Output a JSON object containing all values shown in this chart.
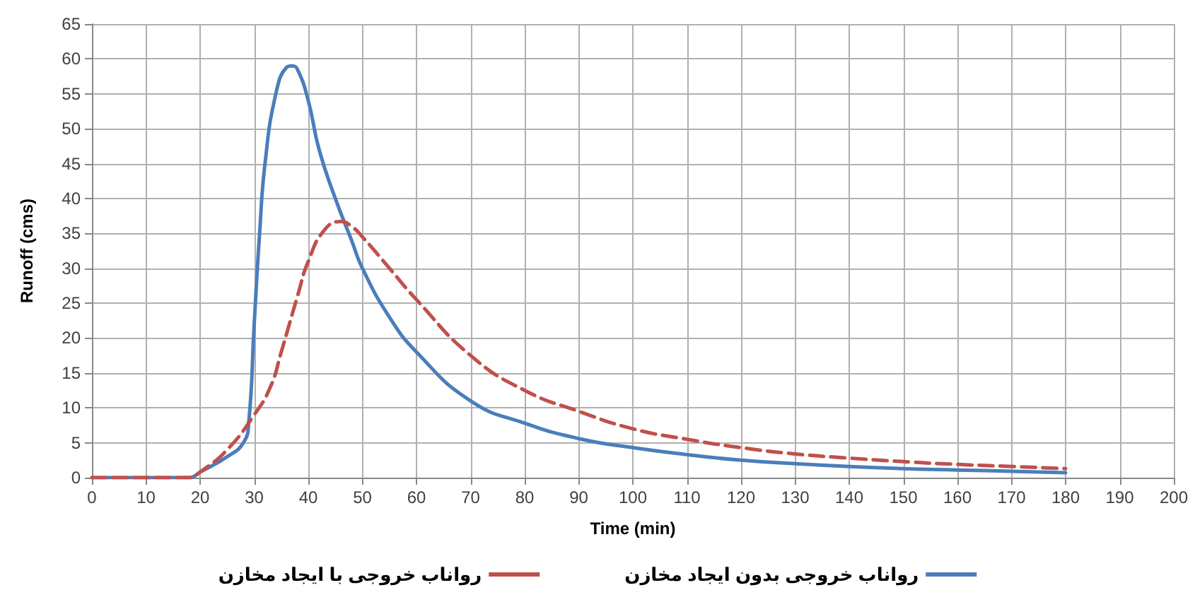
{
  "chart_data": {
    "type": "line",
    "xlabel": "Time (min)",
    "ylabel": "Runoff (cms)",
    "xlim": [
      0,
      200
    ],
    "xticks": [
      0,
      10,
      20,
      30,
      40,
      50,
      60,
      70,
      80,
      90,
      100,
      110,
      120,
      130,
      140,
      150,
      160,
      170,
      180,
      190,
      200
    ],
    "ylim": [
      0,
      65
    ],
    "yticks": [
      0,
      5,
      10,
      15,
      20,
      25,
      30,
      35,
      40,
      45,
      50,
      55,
      60,
      65
    ],
    "grid": true,
    "legend": "bottom",
    "marker": "none",
    "series": [
      {
        "name": "رواناب خروجی بدون ایجاد مخازن",
        "color": "#4a7ebb",
        "line_style": "solid",
        "x": [
          0,
          10,
          18,
          20,
          25,
          28,
          29,
          30,
          31,
          32,
          34,
          36,
          37,
          38,
          40,
          42,
          45,
          48,
          50,
          55,
          60,
          70,
          80,
          90,
          100,
          110,
          120,
          130,
          140,
          150,
          160,
          170,
          180
        ],
        "values": [
          0,
          0,
          0,
          0.8,
          3,
          5,
          8,
          22,
          35,
          45,
          55,
          58.8,
          59,
          58.5,
          54,
          47,
          40,
          34,
          30,
          23,
          18,
          11,
          7.8,
          5.6,
          4.3,
          3.3,
          2.5,
          2,
          1.6,
          1.3,
          1.1,
          0.9,
          0.7
        ]
      },
      {
        "name": "رواناب خروجی با ایجاد مخازن",
        "color": "#c0504d",
        "line_style": "dashed",
        "x": [
          0,
          10,
          18,
          20,
          25,
          30,
          33,
          35,
          38,
          40,
          43,
          46,
          48,
          50,
          55,
          60,
          70,
          80,
          90,
          100,
          110,
          120,
          130,
          140,
          150,
          160,
          170,
          180
        ],
        "values": [
          0,
          0,
          0,
          0.8,
          4,
          9,
          13,
          18,
          26,
          31,
          35.5,
          36.7,
          36,
          34.5,
          30,
          25.5,
          17.5,
          12.5,
          9.5,
          7,
          5.5,
          4.3,
          3.4,
          2.8,
          2.3,
          1.9,
          1.6,
          1.3
        ]
      }
    ]
  }
}
